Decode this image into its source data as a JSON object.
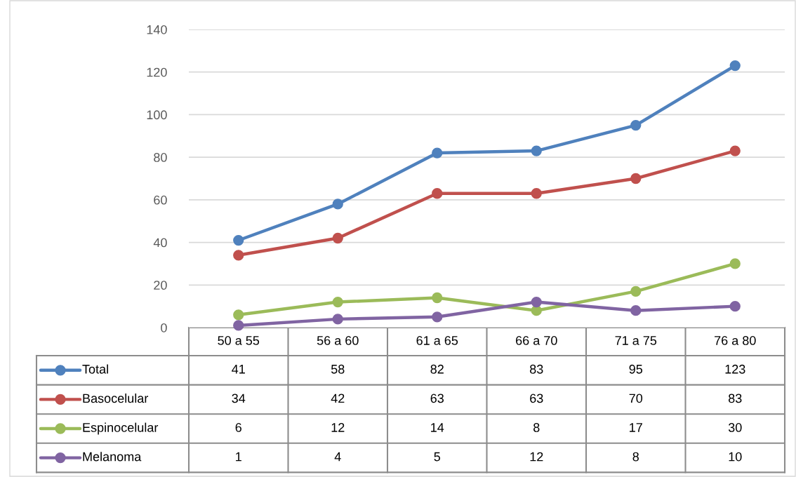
{
  "chart_data": {
    "type": "line",
    "categories": [
      "50 a 55",
      "56 a 60",
      "61 a 65",
      "66 a 70",
      "71 a 75",
      "76 a 80"
    ],
    "series": [
      {
        "name": "Total",
        "color": "#4f81bd",
        "values": [
          41,
          58,
          82,
          83,
          95,
          123
        ]
      },
      {
        "name": "Basocelular",
        "color": "#c0504d",
        "values": [
          34,
          42,
          63,
          63,
          70,
          83
        ]
      },
      {
        "name": "Espinocelular",
        "color": "#9bbb59",
        "values": [
          6,
          12,
          14,
          8,
          17,
          30
        ]
      },
      {
        "name": "Melanoma",
        "color": "#8064a2",
        "values": [
          1,
          4,
          5,
          12,
          8,
          10
        ]
      }
    ],
    "ylim": [
      0,
      140
    ],
    "yticks": [
      0,
      20,
      40,
      60,
      80,
      100,
      120,
      140
    ],
    "grid": "y",
    "legend": "bottom",
    "marker": "circle",
    "line_style": "solid",
    "data_labels": true
  }
}
